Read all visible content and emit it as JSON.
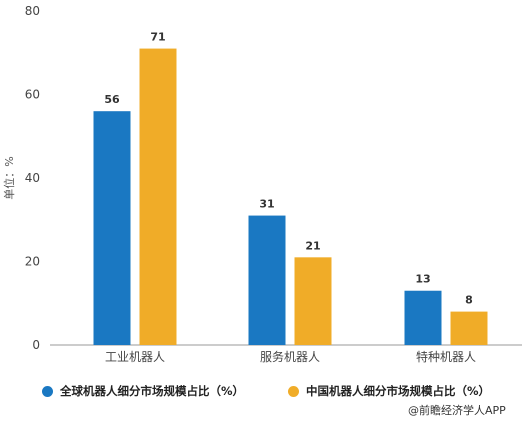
{
  "chart_data": {
    "type": "bar",
    "categories": [
      "工业机器人",
      "服务机器人",
      "特种机器人"
    ],
    "series": [
      {
        "name": "全球机器人细分市场规模占比（%）",
        "values": [
          56,
          31,
          13
        ],
        "color": "#1a78c2"
      },
      {
        "name": "中国机器人细分市场规模占比（%）",
        "values": [
          71,
          21,
          8
        ],
        "color": "#f0ac28"
      }
    ],
    "ylabel": "单位：%",
    "xlabel": "",
    "title": "",
    "ylim": [
      0,
      80
    ],
    "yticks": [
      0,
      20,
      40,
      60,
      80
    ],
    "grid": false,
    "legend_position": "bottom"
  },
  "credit": "@前瞻经济学人APP"
}
